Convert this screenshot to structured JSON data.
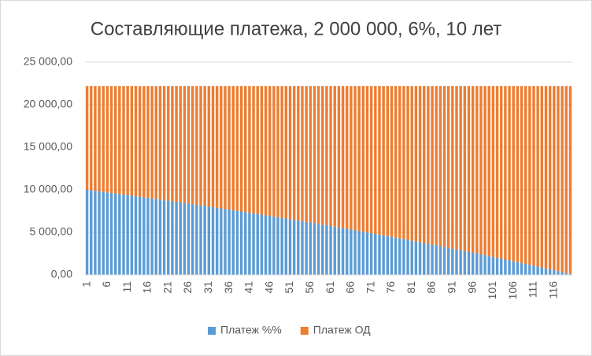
{
  "chart_data": {
    "type": "stacked-bar",
    "title": "Составляющие платежа, 2 000 000, 6%, 10 лет",
    "categories": [
      1,
      null,
      null,
      null,
      null,
      6,
      null,
      null,
      null,
      null,
      11,
      null,
      null,
      null,
      null,
      16,
      null,
      null,
      null,
      null,
      21,
      null,
      null,
      null,
      null,
      26,
      null,
      null,
      null,
      null,
      31,
      null,
      null,
      null,
      null,
      36,
      null,
      null,
      null,
      null,
      41,
      null,
      null,
      null,
      null,
      46,
      null,
      null,
      null,
      null,
      51,
      null,
      null,
      null,
      null,
      56,
      null,
      null,
      null,
      null,
      61,
      null,
      null,
      null,
      null,
      66,
      null,
      null,
      null,
      null,
      71,
      null,
      null,
      null,
      null,
      76,
      null,
      null,
      null,
      null,
      81,
      null,
      null,
      null,
      null,
      86,
      null,
      null,
      null,
      null,
      91,
      null,
      null,
      null,
      null,
      96,
      null,
      null,
      null,
      null,
      101,
      null,
      null,
      null,
      null,
      106,
      null,
      null,
      null,
      null,
      111,
      null,
      null,
      null,
      null,
      116,
      null,
      null,
      null,
      null
    ],
    "series": [
      {
        "name": "Платеж %%",
        "color": "#5b9bd5",
        "values": [
          10000,
          9939,
          9878,
          9816,
          9754,
          9692,
          9629,
          9566,
          9503,
          9440,
          9376,
          9312,
          9247,
          9182,
          9117,
          9052,
          8986,
          8920,
          8854,
          8787,
          8720,
          8652,
          8585,
          8516,
          8448,
          8379,
          8310,
          8241,
          8171,
          8101,
          8030,
          7959,
          7888,
          7816,
          7745,
          7672,
          7600,
          7527,
          7453,
          7379,
          7305,
          7231,
          7156,
          7081,
          7005,
          6929,
          6853,
          6776,
          6699,
          6621,
          6543,
          6465,
          6386,
          6307,
          6228,
          6148,
          6068,
          5987,
          5906,
          5824,
          5742,
          5660,
          5577,
          5494,
          5411,
          5327,
          5242,
          5158,
          5072,
          4987,
          4901,
          4814,
          4727,
          4640,
          4552,
          4464,
          4375,
          4286,
          4196,
          4106,
          4016,
          3925,
          3834,
          3742,
          3649,
          3557,
          3463,
          3370,
          3275,
          3181,
          3086,
          2990,
          2894,
          2798,
          2701,
          2603,
          2505,
          2407,
          2308,
          2208,
          2108,
          2008,
          1907,
          1805,
          1703,
          1601,
          1498,
          1394,
          1290,
          1185,
          1080,
          975,
          869,
          762,
          655,
          547,
          439,
          330,
          220,
          111
        ]
      },
      {
        "name": "Платеж ОД",
        "color": "#ed7d31",
        "values": [
          12204,
          12265,
          12326,
          12388,
          12450,
          12512,
          12575,
          12638,
          12701,
          12764,
          12828,
          12892,
          12957,
          13022,
          13087,
          13152,
          13218,
          13284,
          13350,
          13417,
          13484,
          13552,
          13619,
          13688,
          13756,
          13825,
          13894,
          13963,
          14033,
          14103,
          14174,
          14245,
          14316,
          14388,
          14459,
          14532,
          14604,
          14677,
          14751,
          14825,
          14899,
          14973,
          15048,
          15123,
          15199,
          15275,
          15351,
          15428,
          15505,
          15583,
          15661,
          15739,
          15818,
          15897,
          15976,
          16056,
          16136,
          16217,
          16298,
          16380,
          16462,
          16544,
          16627,
          16710,
          16793,
          16877,
          16962,
          17046,
          17132,
          17217,
          17303,
          17390,
          17477,
          17564,
          17652,
          17740,
          17829,
          17918,
          18008,
          18098,
          18188,
          18279,
          18370,
          18462,
          18555,
          18647,
          18741,
          18834,
          18929,
          19023,
          19118,
          19214,
          19310,
          19406,
          19503,
          19601,
          19699,
          19797,
          19896,
          19996,
          20096,
          20196,
          20297,
          20399,
          20501,
          20603,
          20706,
          20810,
          20914,
          21019,
          21124,
          21229,
          21335,
          21442,
          21549,
          21657,
          21765,
          21874,
          21984,
          22093
        ]
      }
    ],
    "ylim": [
      0,
      25000
    ],
    "yticks": [
      {
        "value": 0,
        "label": "0,00"
      },
      {
        "value": 5000,
        "label": "5 000,00"
      },
      {
        "value": 10000,
        "label": "10 000,00"
      },
      {
        "value": 15000,
        "label": "15 000,00"
      },
      {
        "value": 20000,
        "label": "20 000,00"
      },
      {
        "value": 25000,
        "label": "25 000,00"
      }
    ],
    "grid": true,
    "legend": "bottom"
  }
}
